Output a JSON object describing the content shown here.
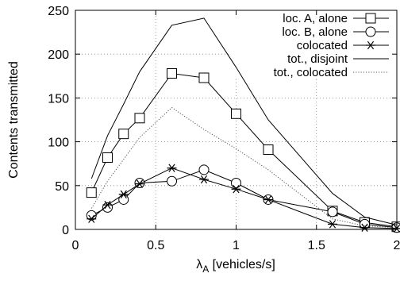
{
  "chart_data": {
    "type": "line",
    "xlabel": "λ_A [vehicles/s]",
    "ylabel": "Contents transmitted",
    "xlim": [
      0,
      2
    ],
    "ylim": [
      0,
      250
    ],
    "x_ticks": [
      "0",
      "0.5",
      "1",
      "1.5",
      "2"
    ],
    "y_ticks": [
      "0",
      "50",
      "100",
      "150",
      "200",
      "250"
    ],
    "grid": true,
    "legend_position": "top-right",
    "series": [
      {
        "name": "loc. A, alone",
        "marker": "square",
        "line_style": "solid",
        "x": [
          0.1,
          0.2,
          0.3,
          0.4,
          0.6,
          0.8,
          1.0,
          1.2,
          1.6,
          1.8,
          2.0
        ],
        "y": [
          42,
          82,
          109,
          127,
          178,
          173,
          132,
          91,
          21,
          8,
          3
        ]
      },
      {
        "name": "loc. B, alone",
        "marker": "circle",
        "line_style": "solid",
        "x": [
          0.1,
          0.2,
          0.3,
          0.4,
          0.6,
          0.8,
          1.0,
          1.2,
          1.6,
          1.8,
          2.0
        ],
        "y": [
          16,
          25,
          34,
          53,
          55,
          68,
          53,
          34,
          20,
          6,
          2
        ]
      },
      {
        "name": "colocated",
        "marker": "star",
        "line_style": "solid",
        "x": [
          0.1,
          0.2,
          0.3,
          0.4,
          0.6,
          0.8,
          1.0,
          1.2,
          1.6,
          1.8,
          2.0
        ],
        "y": [
          12,
          28,
          40,
          52,
          70,
          57,
          46,
          34,
          6,
          2,
          1
        ]
      },
      {
        "name": "tot., disjoint",
        "marker": "none",
        "line_style": "solid",
        "x": [
          0.1,
          0.2,
          0.3,
          0.4,
          0.6,
          0.8,
          1.0,
          1.2,
          1.6,
          1.8,
          2.0
        ],
        "y": [
          58,
          107,
          143,
          180,
          233,
          241,
          185,
          125,
          41,
          14,
          5
        ]
      },
      {
        "name": "tot., colocated",
        "marker": "none",
        "line_style": "dotted",
        "x": [
          0.1,
          0.2,
          0.3,
          0.4,
          0.6,
          0.8,
          1.0,
          1.2,
          1.6,
          1.8,
          2.0
        ],
        "y": [
          24,
          55,
          80,
          105,
          139,
          114,
          92,
          68,
          12,
          4,
          2
        ]
      }
    ]
  }
}
